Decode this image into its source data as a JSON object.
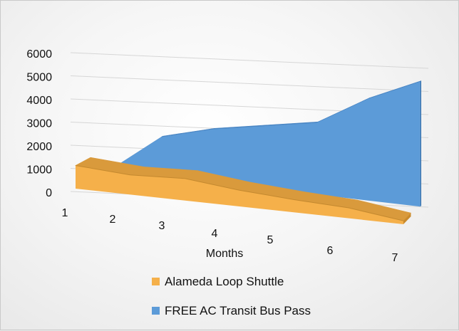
{
  "chart_data": {
    "type": "area",
    "xlabel": "Months",
    "ylabel": "",
    "categories": [
      "1",
      "2",
      "3",
      "4",
      "5",
      "6",
      "7"
    ],
    "ylim": [
      0,
      6000
    ],
    "yticks": [
      "6000",
      "5000",
      "4000",
      "3000",
      "2000",
      "1000",
      "0"
    ],
    "legend_position": "bottom",
    "grid": true,
    "style": "3d",
    "series": [
      {
        "name": "Alameda Loop Shuttle",
        "color": "#f5b04a",
        "values": [
          1000,
          850,
          950,
          700,
          550,
          450,
          150
        ]
      },
      {
        "name": "FREE AC Transit Bus Pass",
        "color": "#5c9bd8",
        "values": [
          0,
          1700,
          2300,
          2700,
          3100,
          4400,
          5400
        ]
      }
    ]
  }
}
